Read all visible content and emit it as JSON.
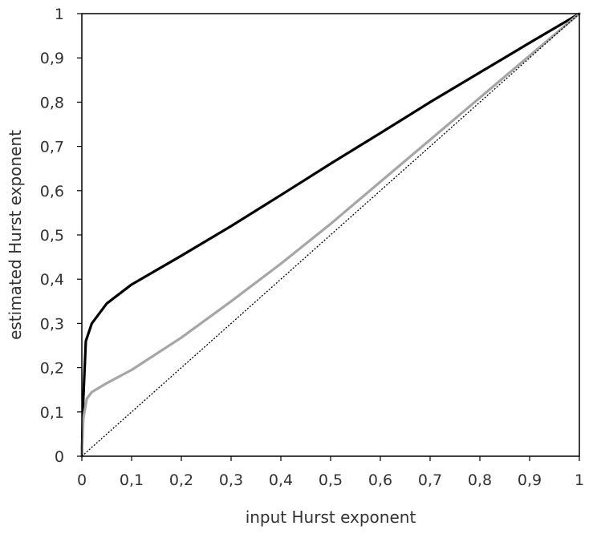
{
  "chart_data": {
    "type": "line",
    "title": "",
    "xlabel": "input Hurst exponent",
    "ylabel": "estimated Hurst exponent",
    "xlim": [
      0,
      1
    ],
    "ylim": [
      0,
      1
    ],
    "x_ticks": [
      "0",
      "0,1",
      "0,2",
      "0,3",
      "0,4",
      "0,5",
      "0,6",
      "0,7",
      "0,8",
      "0,9",
      "1"
    ],
    "y_ticks": [
      "0",
      "0,1",
      "0,2",
      "0,3",
      "0,4",
      "0,5",
      "0,6",
      "0,7",
      "0,8",
      "0,9",
      "1"
    ],
    "grid": false,
    "legend": "none",
    "series": [
      {
        "color": "#000000",
        "style": "solid",
        "points": [
          [
            0,
            0
          ],
          [
            0.003,
            0.13
          ],
          [
            0.008,
            0.26
          ],
          [
            0.02,
            0.3
          ],
          [
            0.05,
            0.345
          ],
          [
            0.1,
            0.388
          ],
          [
            0.2,
            0.453
          ],
          [
            0.3,
            0.52
          ],
          [
            0.4,
            0.59
          ],
          [
            0.5,
            0.661
          ],
          [
            0.6,
            0.73
          ],
          [
            0.7,
            0.8
          ],
          [
            0.8,
            0.867
          ],
          [
            0.9,
            0.934
          ],
          [
            1,
            1
          ]
        ]
      },
      {
        "color": "#a6a6a6",
        "style": "solid",
        "points": [
          [
            0,
            0
          ],
          [
            0.003,
            0.085
          ],
          [
            0.01,
            0.13
          ],
          [
            0.02,
            0.145
          ],
          [
            0.05,
            0.165
          ],
          [
            0.1,
            0.195
          ],
          [
            0.2,
            0.268
          ],
          [
            0.3,
            0.35
          ],
          [
            0.4,
            0.435
          ],
          [
            0.5,
            0.525
          ],
          [
            0.6,
            0.62
          ],
          [
            0.7,
            0.715
          ],
          [
            0.8,
            0.81
          ],
          [
            0.9,
            0.905
          ],
          [
            1,
            1
          ]
        ]
      },
      {
        "color": "#000000",
        "style": "dotted",
        "points": [
          [
            0,
            0
          ],
          [
            1,
            1
          ]
        ]
      }
    ]
  }
}
